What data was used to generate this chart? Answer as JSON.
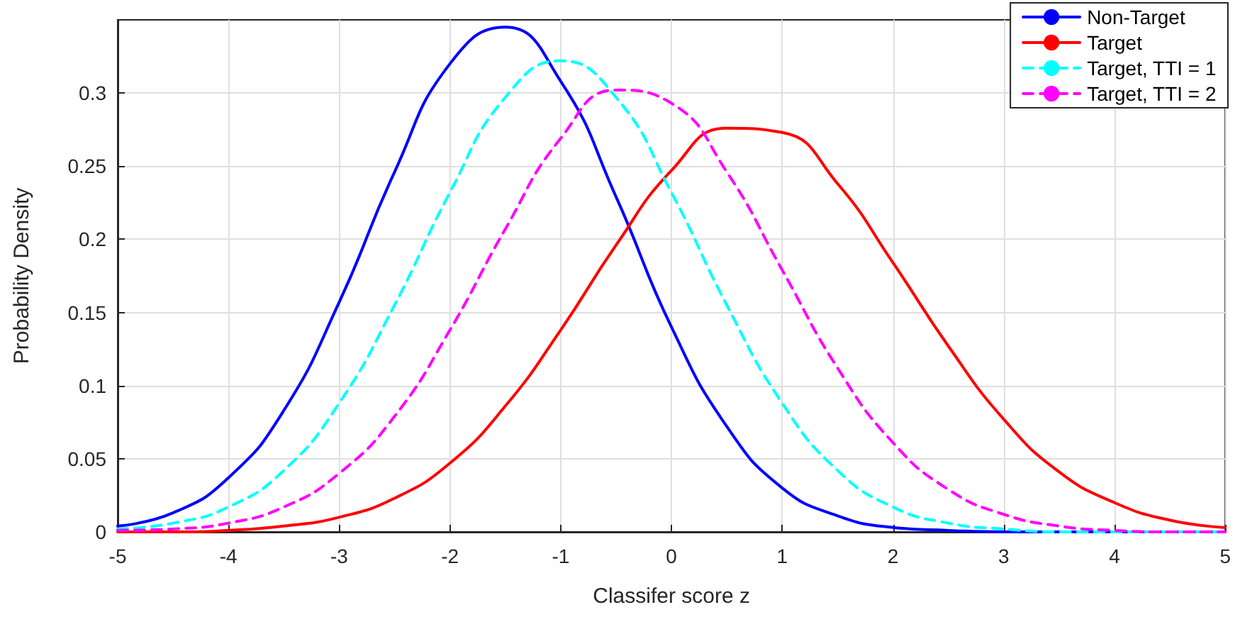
{
  "chart_data": {
    "type": "line",
    "xlabel": "Classifer score z",
    "ylabel": "Probability Density",
    "x": [
      -5,
      -4.5,
      -4,
      -3.5,
      -3,
      -2.5,
      -2,
      -1.5,
      -1,
      -0.5,
      0,
      0.5,
      1,
      1.5,
      2,
      2.5,
      3,
      3.5,
      4,
      4.5,
      5
    ],
    "series": [
      {
        "name": "Non-Target",
        "color": "#0000ff",
        "line_style": "solid",
        "values": [
          0.004,
          0.013,
          0.037,
          0.083,
          0.157,
          0.246,
          0.32,
          0.345,
          0.308,
          0.229,
          0.14,
          0.072,
          0.03,
          0.011,
          0.003,
          0.001,
          0,
          0,
          0,
          0,
          0
        ]
      },
      {
        "name": "Target",
        "color": "#ff0000",
        "line_style": "solid",
        "values": [
          0,
          0,
          0.001,
          0.004,
          0.01,
          0.023,
          0.047,
          0.086,
          0.138,
          0.196,
          0.247,
          0.276,
          0.273,
          0.238,
          0.184,
          0.127,
          0.077,
          0.041,
          0.02,
          0.008,
          0.003
        ]
      },
      {
        "name": "Target, TTI = 1",
        "color": "#00ffff",
        "line_style": "dashed",
        "values": [
          0.002,
          0.006,
          0.017,
          0.042,
          0.088,
          0.155,
          0.232,
          0.297,
          0.322,
          0.297,
          0.232,
          0.155,
          0.088,
          0.042,
          0.017,
          0.006,
          0.002,
          0,
          0,
          0,
          0
        ]
      },
      {
        "name": "Target, TTI = 2",
        "color": "#ff00ff",
        "line_style": "dashed",
        "values": [
          0.001,
          0.002,
          0.006,
          0.017,
          0.04,
          0.079,
          0.138,
          0.207,
          0.269,
          0.302,
          0.293,
          0.246,
          0.179,
          0.112,
          0.061,
          0.029,
          0.012,
          0.004,
          0.001,
          0,
          0
        ]
      }
    ],
    "xlim": [
      -5,
      5
    ],
    "xticks": [
      -5,
      -4,
      -3,
      -2,
      -1,
      0,
      1,
      2,
      3,
      4,
      5
    ],
    "ylim": [
      0,
      0.35
    ],
    "yticks": [
      0,
      0.05,
      0.1,
      0.15,
      0.2,
      0.25,
      0.3
    ],
    "grid": true,
    "legend": "top right",
    "marker": "none"
  }
}
